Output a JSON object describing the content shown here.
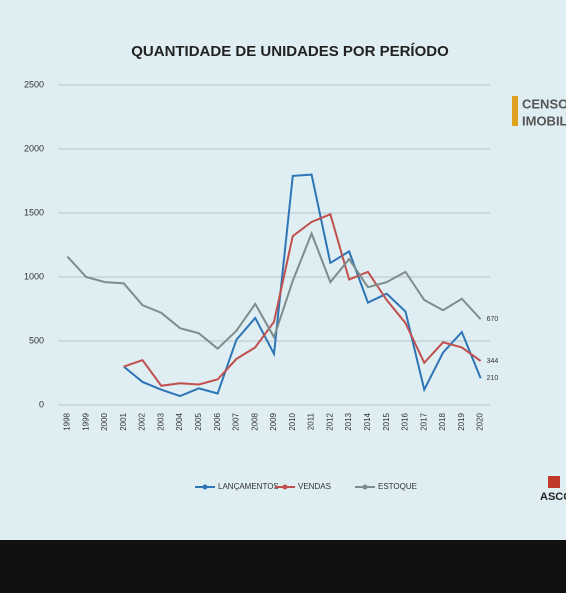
{
  "chart_data": {
    "type": "line",
    "title": "QUANTIDADE DE UNIDADES POR PERÍODO",
    "categories": [
      "1998",
      "1999",
      "2000",
      "2001",
      "2002",
      "2003",
      "2004",
      "2005",
      "2006",
      "2007",
      "2008",
      "2009",
      "2010",
      "2011",
      "2012",
      "2013",
      "2014",
      "2015",
      "2016",
      "2017",
      "2018",
      "2019",
      "2020"
    ],
    "series": [
      {
        "name": "LANÇAMENTOS",
        "color": "#2e75b6",
        "values": [
          null,
          null,
          null,
          300,
          180,
          120,
          70,
          130,
          90,
          510,
          680,
          400,
          1790,
          1800,
          1110,
          1200,
          800,
          870,
          730,
          120,
          410,
          570,
          210
        ]
      },
      {
        "name": "VENDAS",
        "color": "#c0504d",
        "values": [
          null,
          null,
          null,
          300,
          350,
          150,
          170,
          160,
          200,
          360,
          450,
          650,
          1320,
          1430,
          1490,
          980,
          1040,
          820,
          640,
          330,
          490,
          450,
          344
        ]
      },
      {
        "name": "ESTOQUE",
        "color": "#7f8c8d",
        "values": [
          1160,
          1000,
          960,
          950,
          780,
          720,
          600,
          560,
          440,
          580,
          790,
          530,
          970,
          1340,
          960,
          1140,
          920,
          960,
          1040,
          820,
          740,
          830,
          670
        ]
      }
    ],
    "ylim": [
      0,
      2500
    ],
    "yticks": [
      0,
      500,
      1000,
      1500,
      2000,
      2500
    ],
    "grid": true,
    "legend": "bottom"
  },
  "branding": {
    "line1": "CENSO",
    "line2": "IMOBILI",
    "footer": "ASCO"
  }
}
